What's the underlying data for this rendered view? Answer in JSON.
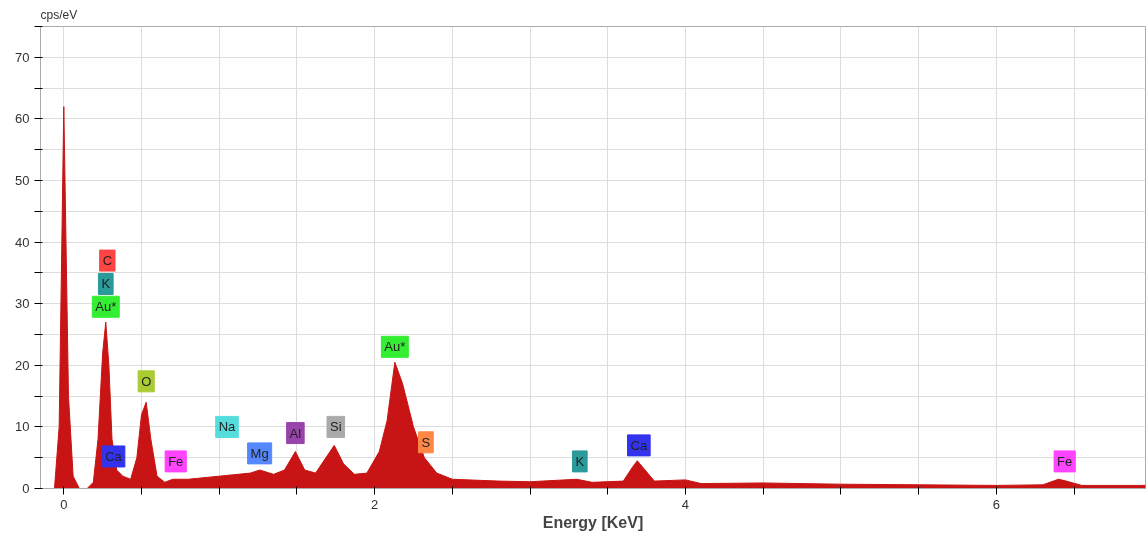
{
  "chart_data": {
    "type": "area",
    "xlabel": "Energy [KeV]",
    "ylabel": "cps/eV",
    "x": [
      -0.06,
      -0.03,
      0,
      0.03,
      0.06,
      0.1,
      0.15,
      0.19,
      0.22,
      0.25,
      0.27,
      0.29,
      0.31,
      0.34,
      0.38,
      0.43,
      0.47,
      0.5,
      0.53,
      0.56,
      0.6,
      0.65,
      0.7,
      0.8,
      1.0,
      1.2,
      1.26,
      1.35,
      1.42,
      1.49,
      1.55,
      1.62,
      1.7,
      1.74,
      1.8,
      1.87,
      1.95,
      2.03,
      2.08,
      2.13,
      2.18,
      2.25,
      2.32,
      2.4,
      2.5,
      2.8,
      3.0,
      3.3,
      3.4,
      3.6,
      3.66,
      3.69,
      3.74,
      3.8,
      4.0,
      4.1,
      4.5,
      5.0,
      5.5,
      6.0,
      6.3,
      6.4,
      6.45,
      6.55,
      6.96
    ],
    "series": [
      {
        "color": "#c81414",
        "values": [
          0,
          10,
          62,
          15,
          2,
          0,
          0,
          1,
          8,
          22,
          27,
          20,
          8,
          3,
          2,
          1.5,
          5,
          12,
          14,
          8,
          2,
          1,
          1.5,
          1.5,
          2,
          2.5,
          3,
          2.3,
          3,
          6,
          3,
          2.5,
          5.5,
          7,
          4,
          2.3,
          2.5,
          6,
          11,
          20.5,
          17,
          10,
          5,
          2.5,
          1.5,
          1.2,
          1.1,
          1.5,
          1,
          1.2,
          3.5,
          4.5,
          3,
          1.2,
          1.4,
          0.8,
          0.9,
          0.7,
          0.6,
          0.5,
          0.6,
          1.5,
          1.2,
          0.5,
          0.5
        ]
      }
    ],
    "xlim": [
      -0.15,
      6.96
    ],
    "ylim": [
      0,
      75
    ],
    "xticks": [
      0,
      {
        "value": 0.5,
        "label": null
      },
      {
        "value": 1,
        "label": null
      },
      {
        "value": 1.5,
        "label": null
      },
      2,
      {
        "value": 2.5,
        "label": null
      },
      {
        "value": 3,
        "label": null
      },
      {
        "value": 3.5,
        "label": null
      },
      4,
      {
        "value": 4.5,
        "label": null
      },
      {
        "value": 5,
        "label": null
      },
      {
        "value": 5.5,
        "label": null
      },
      6,
      {
        "value": 6.5,
        "label": null
      }
    ],
    "yticks": [
      0,
      {
        "value": 5,
        "label": null
      },
      10,
      {
        "value": 15,
        "label": null
      },
      20,
      {
        "value": 25,
        "label": null
      },
      30,
      {
        "value": 35,
        "label": null
      },
      40,
      {
        "value": 45,
        "label": null
      },
      50,
      {
        "value": 55,
        "label": null
      },
      60,
      {
        "value": 65,
        "label": null
      },
      70,
      {
        "value": 75,
        "label": null
      }
    ],
    "grid": true,
    "annotations": [
      {
        "text": "C",
        "x": 0.28,
        "y": 37
      },
      {
        "text": "K",
        "x": 0.27,
        "y": 33.2
      },
      {
        "text": "Au*",
        "x": 0.27,
        "y": 29.5
      },
      {
        "text": "Ca",
        "x": 0.32,
        "y": 5.2
      },
      {
        "text": "O",
        "x": 0.53,
        "y": 17.4
      },
      {
        "text": "Fe",
        "x": 0.72,
        "y": 4.4
      },
      {
        "text": "Na",
        "x": 1.05,
        "y": 10
      },
      {
        "text": "Mg",
        "x": 1.26,
        "y": 5.7
      },
      {
        "text": "Al",
        "x": 1.49,
        "y": 9
      },
      {
        "text": "Si",
        "x": 1.75,
        "y": 10
      },
      {
        "text": "Au*",
        "x": 2.13,
        "y": 23
      },
      {
        "text": "S",
        "x": 2.33,
        "y": 7.5
      },
      {
        "text": "K",
        "x": 3.32,
        "y": 4.4
      },
      {
        "text": "Ca",
        "x": 3.7,
        "y": 7
      },
      {
        "text": "Fe",
        "x": 6.44,
        "y": 4.4
      }
    ]
  }
}
